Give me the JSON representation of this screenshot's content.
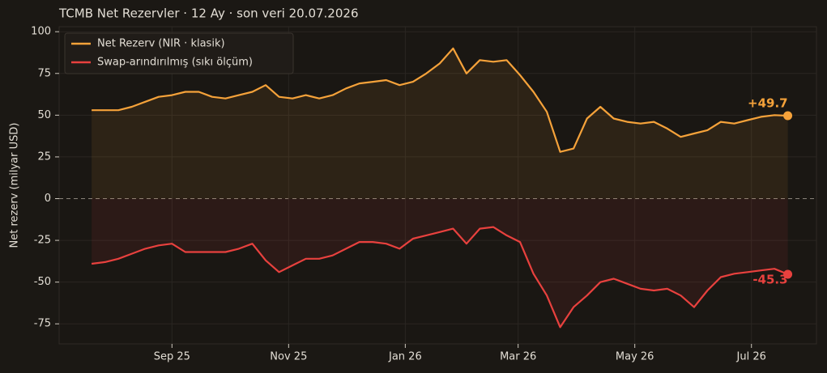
{
  "chart_data": {
    "type": "line",
    "title": "TCMB Net Rezervler · 12 Ay · son veri 20.07.2026",
    "y_label": "Net rezerv (milyar USD)",
    "x": [
      "2025-07-21",
      "2025-07-28",
      "2025-08-04",
      "2025-08-11",
      "2025-08-18",
      "2025-08-25",
      "2025-09-01",
      "2025-09-08",
      "2025-09-15",
      "2025-09-22",
      "2025-09-29",
      "2025-10-06",
      "2025-10-13",
      "2025-10-20",
      "2025-10-27",
      "2025-11-03",
      "2025-11-10",
      "2025-11-17",
      "2025-11-24",
      "2025-12-01",
      "2025-12-08",
      "2025-12-15",
      "2025-12-22",
      "2025-12-29",
      "2026-01-05",
      "2026-01-12",
      "2026-01-19",
      "2026-01-26",
      "2026-02-02",
      "2026-02-09",
      "2026-02-16",
      "2026-02-23",
      "2026-03-02",
      "2026-03-09",
      "2026-03-16",
      "2026-03-23",
      "2026-03-30",
      "2026-04-06",
      "2026-04-13",
      "2026-04-20",
      "2026-04-27",
      "2026-05-04",
      "2026-05-11",
      "2026-05-18",
      "2026-05-25",
      "2026-06-01",
      "2026-06-08",
      "2026-06-15",
      "2026-06-22",
      "2026-06-29",
      "2026-07-06",
      "2026-07-13",
      "2026-07-20"
    ],
    "series": [
      {
        "name": "Net Rezerv (NIR · klasik)",
        "color": "#f5a23a",
        "values": [
          53,
          53,
          53,
          55,
          58,
          61,
          62,
          64,
          64,
          61,
          60,
          62,
          64,
          68,
          61,
          60,
          62,
          60,
          62,
          66,
          69,
          70,
          71,
          68,
          70,
          75,
          81,
          90,
          75,
          83,
          82,
          83,
          74,
          64,
          52,
          28,
          30,
          48,
          55,
          48,
          46,
          45,
          46,
          42,
          37,
          39,
          41,
          46,
          45,
          47,
          49,
          50,
          49.7
        ],
        "value_labels": [
          null,
          null,
          null,
          null,
          null,
          null,
          null,
          null,
          null,
          null,
          null,
          null,
          null,
          null,
          null,
          null,
          null,
          null,
          null,
          null,
          null,
          null,
          null,
          null,
          null,
          null,
          null,
          null,
          null,
          null,
          null,
          null,
          null,
          null,
          null,
          null,
          null,
          null,
          null,
          null,
          null,
          null,
          null,
          null,
          null,
          null,
          null,
          null,
          null,
          null,
          null,
          null,
          "+49.7"
        ]
      },
      {
        "name": "Swap-arındırılmış (sıkı ölçüm)",
        "color": "#e8413e",
        "values": [
          -39,
          -38,
          -36,
          -33,
          -30,
          -28,
          -27,
          -32,
          -32,
          -32,
          -32,
          -30,
          -27,
          -37,
          -44,
          -40,
          -36,
          -36,
          -34,
          -30,
          -26,
          -26,
          -27,
          -30,
          -24,
          -22,
          -20,
          -18,
          -27,
          -18,
          -17,
          -22,
          -26,
          -45,
          -58,
          -77,
          -65,
          -58,
          -50,
          -48,
          -51,
          -54,
          -55,
          -54,
          -58,
          -65,
          -55,
          -47,
          -45,
          -44,
          -43,
          -42,
          -45.3
        ],
        "value_labels": [
          null,
          null,
          null,
          null,
          null,
          null,
          null,
          null,
          null,
          null,
          null,
          null,
          null,
          null,
          null,
          null,
          null,
          null,
          null,
          null,
          null,
          null,
          null,
          null,
          null,
          null,
          null,
          null,
          null,
          null,
          null,
          null,
          null,
          null,
          null,
          null,
          null,
          null,
          null,
          null,
          null,
          null,
          null,
          null,
          null,
          null,
          null,
          null,
          null,
          null,
          null,
          null,
          "-45.3"
        ]
      }
    ],
    "xlim": [
      "2025-07-04",
      "2026-08-04"
    ],
    "xticks": [
      {
        "value": "2025-09-01",
        "label": "Sep 25"
      },
      {
        "value": "2025-11-01",
        "label": "Nov 25"
      },
      {
        "value": "2026-01-01",
        "label": "Jan 26"
      },
      {
        "value": "2026-03-01",
        "label": "Mar 26"
      },
      {
        "value": "2026-05-01",
        "label": "May 26"
      },
      {
        "value": "2026-07-01",
        "label": "Jul 26"
      }
    ],
    "ylim": [
      -87,
      103
    ],
    "yticks": [
      -75,
      -50,
      -25,
      0,
      25,
      50,
      75,
      100
    ],
    "grid": true,
    "legend": "upper left"
  }
}
